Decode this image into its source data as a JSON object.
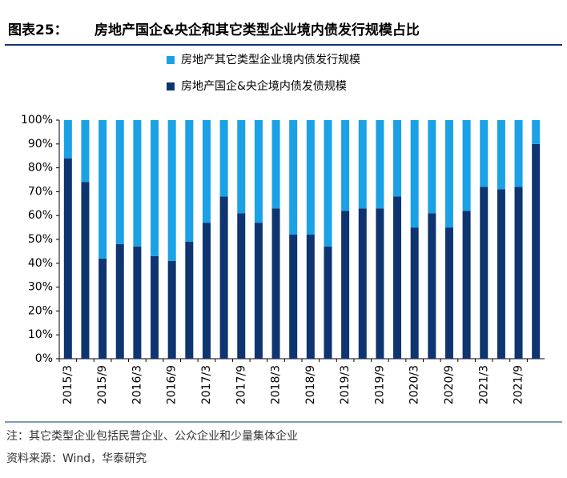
{
  "chart_data": {
    "type": "stacked_bar",
    "title_label": "图表25：",
    "title": "房地产国企&央企和其它类型企业境内债发行规模占比",
    "categories": [
      "2015/3",
      null,
      "2015/9",
      null,
      "2016/3",
      null,
      "2016/9",
      null,
      "2017/3",
      null,
      "2017/9",
      null,
      "2018/3",
      null,
      "2018/9",
      null,
      "2019/3",
      null,
      "2019/9",
      null,
      "2020/3",
      null,
      "2020/9",
      null,
      "2021/3",
      null,
      "2021/9",
      null
    ],
    "series": [
      {
        "name": "房地产国企&央企境内债发债规模",
        "color": "#0e3570",
        "values": [
          84,
          74,
          42,
          48,
          47,
          43,
          41,
          49,
          57,
          68,
          61,
          57,
          63,
          52,
          52,
          47,
          62,
          63,
          63,
          68,
          55,
          61,
          55,
          62,
          72,
          71,
          72,
          90
        ]
      },
      {
        "name": "房地产其它类型企业境内债发行规模",
        "color": "#1ba1e6",
        "values": [
          16,
          26,
          58,
          52,
          53,
          57,
          59,
          51,
          43,
          32,
          39,
          43,
          37,
          48,
          48,
          53,
          38,
          37,
          37,
          32,
          45,
          39,
          45,
          38,
          28,
          29,
          28,
          10
        ]
      }
    ],
    "ylim": [
      0,
      100
    ],
    "yticks": [
      {
        "value": 0,
        "label": "0%"
      },
      {
        "value": 10,
        "label": "10%"
      },
      {
        "value": 20,
        "label": "20%"
      },
      {
        "value": 30,
        "label": "30%"
      },
      {
        "value": 40,
        "label": "40%"
      },
      {
        "value": 50,
        "label": "50%"
      },
      {
        "value": 60,
        "label": "60%"
      },
      {
        "value": 70,
        "label": "70%"
      },
      {
        "value": 80,
        "label": "80%"
      },
      {
        "value": 90,
        "label": "90%"
      },
      {
        "value": 100,
        "label": "100%"
      }
    ],
    "notes": [
      "注：其它类型企业包括民营企业、公众企业和少量集体企业",
      "资料来源：Wind，华泰研究"
    ]
  }
}
